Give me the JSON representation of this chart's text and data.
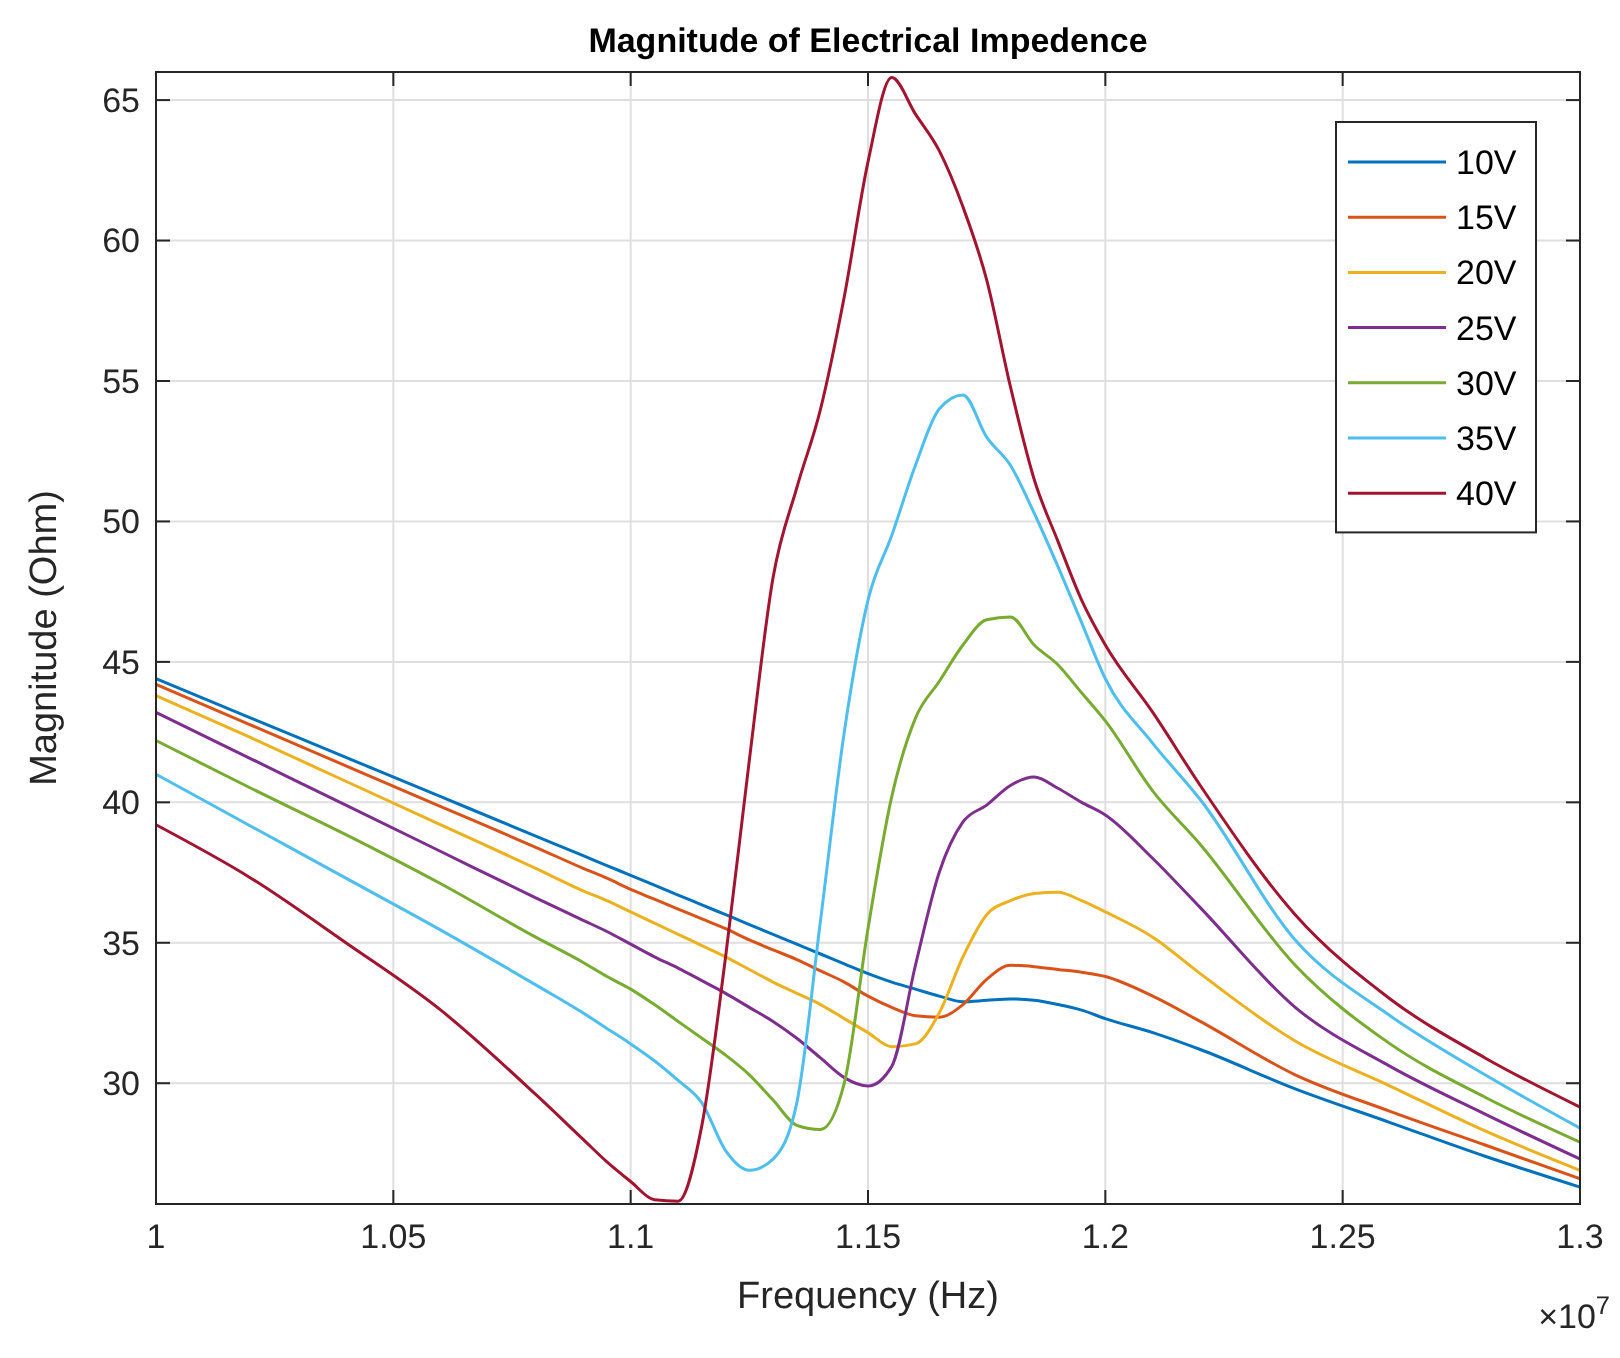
{
  "chart_data": {
    "type": "line",
    "title": "Magnitude of Electrical Impedence",
    "xlabel": "Frequency (Hz)",
    "ylabel": "Magnitude (Ohm)",
    "x": [
      1.0,
      1.02,
      1.04,
      1.06,
      1.08,
      1.09,
      1.095,
      1.1,
      1.105,
      1.11,
      1.115,
      1.12,
      1.125,
      1.13,
      1.135,
      1.14,
      1.145,
      1.15,
      1.155,
      1.16,
      1.165,
      1.17,
      1.175,
      1.18,
      1.185,
      1.19,
      1.195,
      1.2,
      1.21,
      1.22,
      1.24,
      1.26,
      1.28,
      1.3
    ],
    "series": [
      {
        "name": "10V",
        "color": "#0072bd",
        "values": [
          44.4,
          43.0,
          41.6,
          40.2,
          38.8,
          38.1,
          37.75,
          37.4,
          37.05,
          36.7,
          36.35,
          36.0,
          35.65,
          35.3,
          34.95,
          34.6,
          34.25,
          33.9,
          33.6,
          33.35,
          33.1,
          32.9,
          32.95,
          33.0,
          32.95,
          32.8,
          32.6,
          32.3,
          31.8,
          31.2,
          29.8,
          28.6,
          27.4,
          26.3
        ]
      },
      {
        "name": "15V",
        "color": "#d95319",
        "values": [
          44.2,
          42.75,
          41.3,
          39.85,
          38.4,
          37.65,
          37.3,
          36.9,
          36.55,
          36.2,
          35.85,
          35.5,
          35.1,
          34.75,
          34.4,
          34.0,
          33.6,
          33.1,
          32.7,
          32.4,
          32.35,
          32.8,
          33.7,
          34.2,
          34.15,
          34.05,
          33.95,
          33.8,
          33.1,
          32.2,
          30.3,
          29.0,
          27.8,
          26.6
        ]
      },
      {
        "name": "20V",
        "color": "#edb120",
        "values": [
          43.8,
          42.3,
          40.75,
          39.2,
          37.65,
          36.85,
          36.5,
          36.1,
          35.7,
          35.3,
          34.9,
          34.5,
          34.05,
          33.6,
          33.2,
          32.8,
          32.3,
          31.8,
          31.3,
          31.4,
          32.5,
          34.5,
          36.0,
          36.5,
          36.75,
          36.8,
          36.5,
          36.1,
          35.2,
          33.9,
          31.5,
          29.9,
          28.3,
          26.9
        ]
      },
      {
        "name": "25V",
        "color": "#7e2f8e",
        "values": [
          43.2,
          41.55,
          39.9,
          38.25,
          36.6,
          35.8,
          35.4,
          34.95,
          34.5,
          34.1,
          33.65,
          33.2,
          32.7,
          32.2,
          31.6,
          30.9,
          30.2,
          29.9,
          30.6,
          34.2,
          37.5,
          39.3,
          39.9,
          40.6,
          40.9,
          40.5,
          40.0,
          39.55,
          38.0,
          36.25,
          32.7,
          30.6,
          28.9,
          27.3
        ]
      },
      {
        "name": "30V",
        "color": "#77ac30",
        "values": [
          42.2,
          40.5,
          38.85,
          37.1,
          35.2,
          34.3,
          33.8,
          33.35,
          32.8,
          32.2,
          31.6,
          31.0,
          30.3,
          29.4,
          28.5,
          28.35,
          30.0,
          35.5,
          40.2,
          43.0,
          44.3,
          45.6,
          46.5,
          46.6,
          45.6,
          44.9,
          43.9,
          42.9,
          40.4,
          38.5,
          34.2,
          31.4,
          29.5,
          27.9
        ]
      },
      {
        "name": "35V",
        "color": "#4dbeee",
        "values": [
          41.0,
          39.15,
          37.3,
          35.45,
          33.5,
          32.5,
          31.95,
          31.4,
          30.8,
          30.1,
          29.3,
          27.6,
          26.9,
          27.3,
          29.3,
          35.8,
          42.5,
          47.2,
          49.5,
          52.0,
          54.0,
          54.5,
          53.0,
          52.0,
          50.3,
          48.4,
          46.4,
          44.4,
          42.1,
          40.1,
          35.1,
          32.4,
          30.3,
          28.4
        ]
      },
      {
        "name": "40V",
        "color": "#a2142f",
        "values": [
          39.2,
          37.3,
          35.0,
          32.6,
          29.6,
          28.0,
          27.2,
          26.5,
          25.85,
          25.8,
          28.5,
          34.5,
          41.5,
          48.0,
          51.2,
          54.0,
          58.0,
          62.8,
          65.8,
          64.5,
          63.2,
          61.2,
          58.6,
          54.8,
          51.5,
          49.3,
          47.2,
          45.6,
          43.2,
          40.6,
          36.0,
          33.0,
          30.9,
          29.15
        ]
      }
    ],
    "xlim": [
      1,
      1.3
    ],
    "xticks": [
      1,
      1.05,
      1.1,
      1.15,
      1.2,
      1.25,
      1.3
    ],
    "ylim": [
      25.7,
      66
    ],
    "yticks": [
      30,
      35,
      40,
      45,
      50,
      55,
      60,
      65
    ],
    "annotations": [
      "×10$^{7}$"
    ],
    "grid": true,
    "legend": "top right",
    "marker": "none",
    "line_style": "solid"
  }
}
